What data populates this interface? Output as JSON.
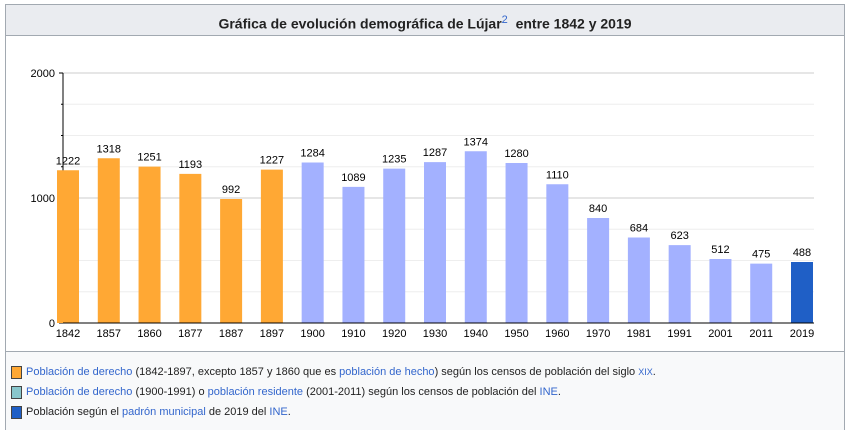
{
  "chart_data": {
    "type": "bar",
    "title": "Gráfica de evolución demográfica de Lújar",
    "title_sup": "2",
    "title_suffix": "entre 1842 y 2019",
    "categories": [
      "1842",
      "1857",
      "1860",
      "1877",
      "1887",
      "1897",
      "1900",
      "1910",
      "1920",
      "1930",
      "1940",
      "1950",
      "1960",
      "1970",
      "1981",
      "1991",
      "2001",
      "2011",
      "2019"
    ],
    "values": [
      1222,
      1318,
      1251,
      1193,
      992,
      1227,
      1284,
      1089,
      1235,
      1287,
      1374,
      1280,
      1110,
      840,
      684,
      623,
      512,
      475,
      488
    ],
    "groups": [
      "a",
      "a",
      "a",
      "a",
      "a",
      "a",
      "b",
      "b",
      "b",
      "b",
      "b",
      "b",
      "b",
      "b",
      "b",
      "b",
      "b",
      "b",
      "c"
    ],
    "ylim": [
      0,
      2000
    ],
    "yticks": [
      0,
      1000,
      2000
    ],
    "grid": true,
    "colors": {
      "a": "#ffa834",
      "b": "#a3b1ff",
      "c": "#1f5fc6",
      "legend_b": "#88c6cc"
    }
  },
  "legend": [
    {
      "parts": [
        [
          "l",
          "Población de derecho"
        ],
        [
          "t",
          " (1842-1897, excepto 1857 y 1860 que es "
        ],
        [
          "l",
          "población de hecho"
        ],
        [
          "t",
          ") según los censos de población del siglo "
        ],
        [
          "s",
          "XIX"
        ],
        [
          "t",
          "."
        ]
      ]
    },
    {
      "parts": [
        [
          "l",
          "Población de derecho"
        ],
        [
          "t",
          " (1900-1991) o "
        ],
        [
          "l",
          "población residente"
        ],
        [
          "t",
          " (2001-2011) según los censos de población del "
        ],
        [
          "l",
          "INE"
        ],
        [
          "t",
          "."
        ]
      ]
    },
    {
      "parts": [
        [
          "t",
          "Población según el "
        ],
        [
          "l",
          "padrón municipal"
        ],
        [
          "t",
          " de 2019 del "
        ],
        [
          "l",
          "INE"
        ],
        [
          "t",
          "."
        ]
      ]
    }
  ]
}
